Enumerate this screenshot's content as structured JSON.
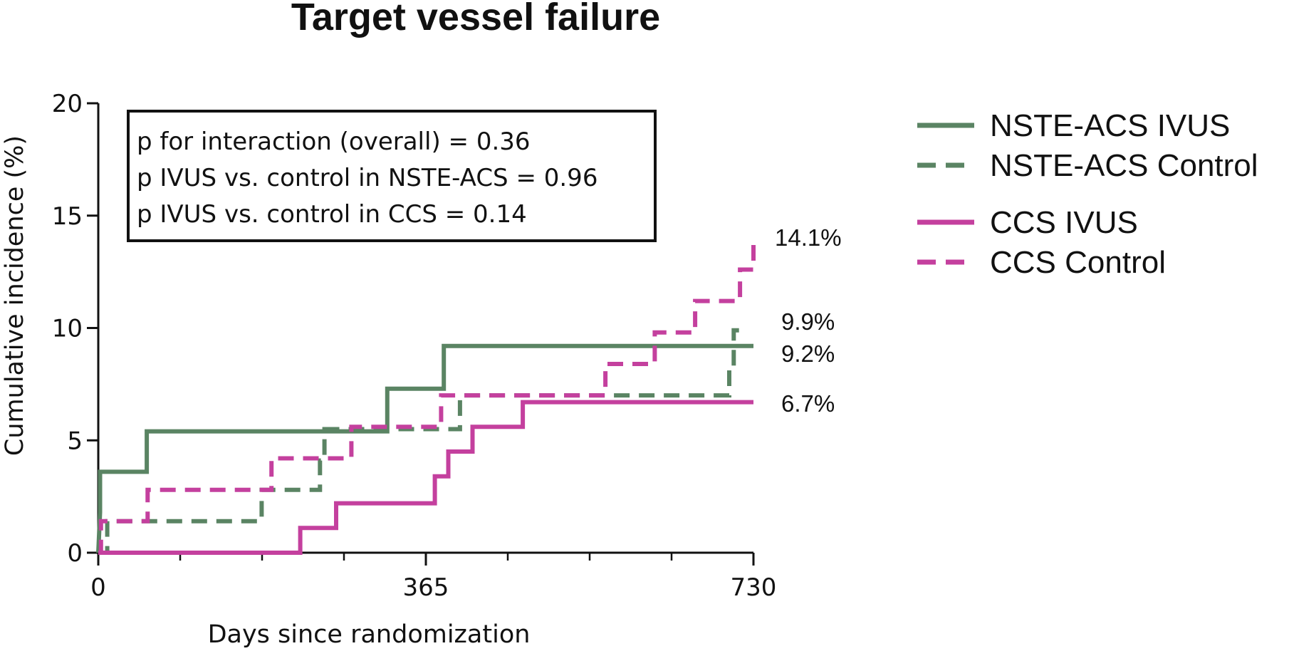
{
  "chart_data": {
    "type": "line",
    "step": true,
    "title": "Target vessel failure",
    "xlabel": "Days since randomization",
    "ylabel": "Cumulative incidence (%)",
    "xlim": [
      0,
      730
    ],
    "ylim": [
      0,
      20
    ],
    "x_ticks": [
      0,
      365,
      730
    ],
    "y_ticks": [
      0,
      5,
      10,
      15,
      20
    ],
    "grid": false,
    "legend_position": "right",
    "annotations": [
      "p for interaction (overall) = 0.36",
      "p IVUS vs. control in NSTE-ACS = 0.96",
      "p IVUS vs. control in CCS = 0.14"
    ],
    "series": [
      {
        "name": "NSTE-ACS IVUS",
        "color": "#5a8463",
        "dash": "solid",
        "end_label": "9.2%",
        "points": [
          [
            0,
            0
          ],
          [
            2,
            1.8
          ],
          [
            2,
            3.6
          ],
          [
            54,
            3.6
          ],
          [
            54,
            5.4
          ],
          [
            322,
            5.4
          ],
          [
            322,
            7.3
          ],
          [
            385,
            7.3
          ],
          [
            385,
            9.2
          ],
          [
            730,
            9.2
          ]
        ]
      },
      {
        "name": "NSTE-ACS Control",
        "color": "#5a8463",
        "dash": "dashed",
        "end_label": "9.9%",
        "points": [
          [
            0,
            0
          ],
          [
            10,
            0
          ],
          [
            10,
            1.4
          ],
          [
            182,
            1.4
          ],
          [
            182,
            2.8
          ],
          [
            247,
            2.8
          ],
          [
            247,
            4.1
          ],
          [
            252,
            4.1
          ],
          [
            252,
            5.5
          ],
          [
            403,
            5.5
          ],
          [
            403,
            7.0
          ],
          [
            703,
            7.0
          ],
          [
            703,
            8.3
          ],
          [
            708,
            8.3
          ],
          [
            708,
            9.9
          ],
          [
            718,
            9.9
          ]
        ]
      },
      {
        "name": "CCS IVUS",
        "color": "#c4409e",
        "dash": "solid",
        "end_label": "6.7%",
        "points": [
          [
            0,
            0
          ],
          [
            225,
            0
          ],
          [
            225,
            1.1
          ],
          [
            265,
            1.1
          ],
          [
            265,
            2.2
          ],
          [
            375,
            2.2
          ],
          [
            375,
            3.4
          ],
          [
            390,
            3.4
          ],
          [
            390,
            4.5
          ],
          [
            417,
            4.5
          ],
          [
            417,
            5.6
          ],
          [
            473,
            5.6
          ],
          [
            473,
            6.7
          ],
          [
            730,
            6.7
          ]
        ]
      },
      {
        "name": "CCS Control",
        "color": "#c4409e",
        "dash": "dashed",
        "end_label": "14.1%",
        "points": [
          [
            0,
            0
          ],
          [
            3,
            0
          ],
          [
            3,
            1.4
          ],
          [
            55,
            1.4
          ],
          [
            55,
            2.8
          ],
          [
            193,
            2.8
          ],
          [
            193,
            4.2
          ],
          [
            282,
            4.2
          ],
          [
            282,
            5.6
          ],
          [
            382,
            5.6
          ],
          [
            382,
            7.0
          ],
          [
            565,
            7.0
          ],
          [
            565,
            8.4
          ],
          [
            620,
            8.4
          ],
          [
            620,
            9.8
          ],
          [
            665,
            9.8
          ],
          [
            665,
            11.2
          ],
          [
            715,
            11.2
          ],
          [
            715,
            12.6
          ],
          [
            730,
            12.6
          ],
          [
            730,
            14.1
          ]
        ]
      }
    ]
  }
}
